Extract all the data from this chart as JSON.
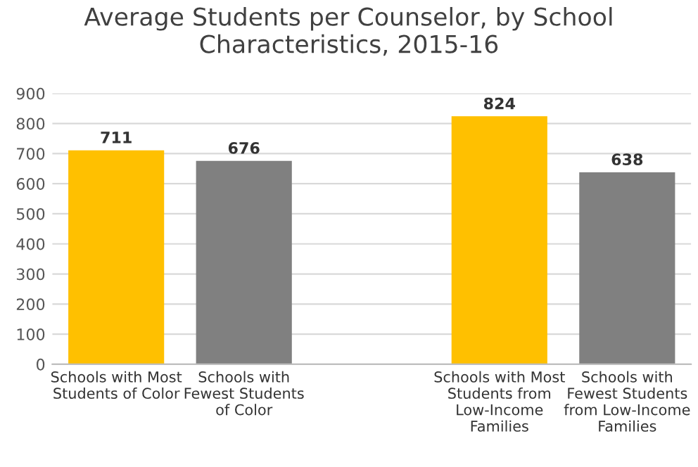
{
  "chart_data": {
    "type": "bar",
    "title": "Average Students per Counselor, by School Characteristics, 2015-16",
    "categories": [
      "Schools with Most Students of Color",
      "Schools with Fewest Students of Color",
      null,
      "Schools with Most Students from Low-Income Families",
      "Schools with Fewest Students from Low-Income Families"
    ],
    "values": [
      711,
      676,
      null,
      824,
      638
    ],
    "colors": [
      "#ffc000",
      "#808080",
      null,
      "#ffc000",
      "#808080"
    ],
    "ylim": [
      0,
      900
    ],
    "yticks": [
      0,
      100,
      200,
      300,
      400,
      500,
      600,
      700,
      800,
      900
    ],
    "grid": "y",
    "data_labels": true,
    "legend": false
  }
}
